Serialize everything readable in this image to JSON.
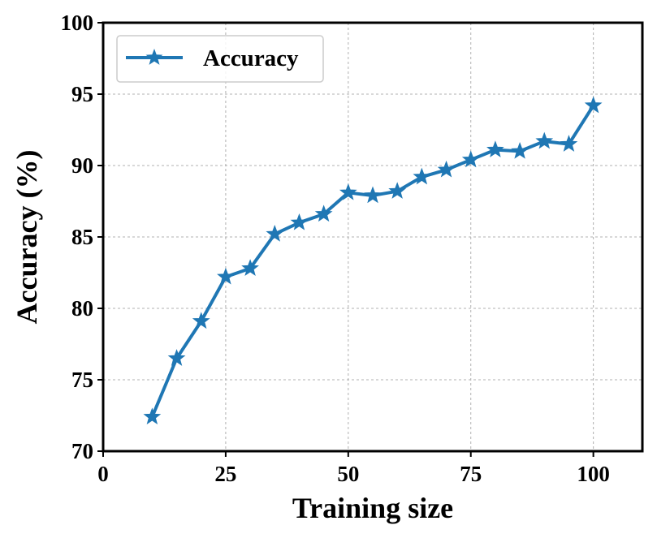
{
  "chart_data": {
    "type": "line",
    "title": "",
    "xlabel": "Training size",
    "ylabel": "Accuracy (%)",
    "xlim": [
      0,
      110
    ],
    "ylim": [
      70,
      100
    ],
    "xticks": [
      0,
      25,
      50,
      75,
      100
    ],
    "yticks": [
      70,
      75,
      80,
      85,
      90,
      95,
      100
    ],
    "grid": true,
    "legend_position": "top-left",
    "series": [
      {
        "name": "Accuracy",
        "color": "#1f77b4",
        "marker": "star",
        "x": [
          10,
          15,
          20,
          25,
          30,
          35,
          40,
          45,
          50,
          55,
          60,
          65,
          70,
          75,
          80,
          85,
          90,
          95,
          100
        ],
        "y": [
          72.4,
          76.5,
          79.1,
          82.2,
          82.8,
          85.2,
          86.0,
          86.6,
          88.1,
          87.9,
          88.2,
          89.2,
          89.7,
          90.4,
          91.1,
          91.0,
          91.7,
          91.5,
          94.2
        ]
      }
    ]
  }
}
